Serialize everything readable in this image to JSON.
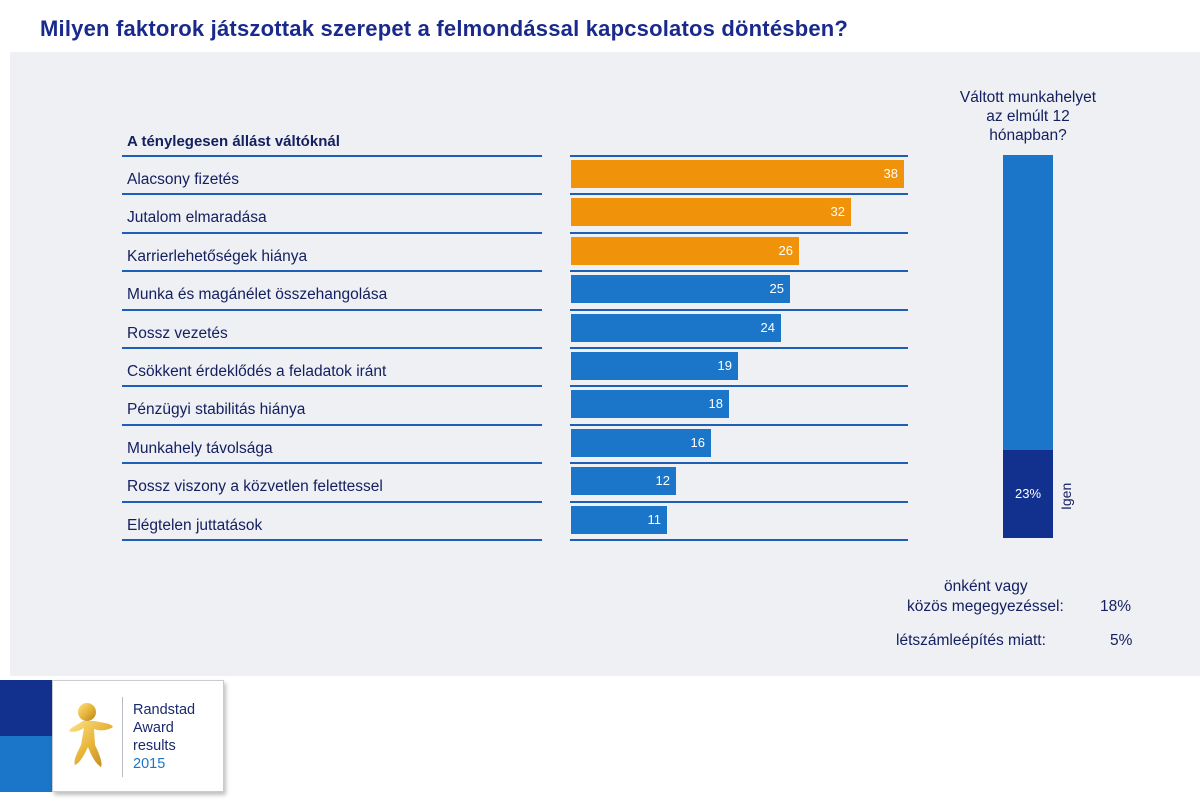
{
  "title": "Milyen faktorok játszottak szerepet a felmondással kapcsolatos döntésben?",
  "section_heading": "A ténylegesen állást váltóknál",
  "colors": {
    "highlight": "#f0920a",
    "primary": "#1b75c9",
    "dark": "#12318f",
    "title": "#1a2a8c"
  },
  "chart_data": [
    {
      "type": "bar",
      "orientation": "horizontal",
      "title": "A ténylegesen állást váltóknál",
      "categories": [
        "Alacsony fizetés",
        "Jutalom elmaradása",
        "Karrierlehetőségek hiánya",
        "Munka és magánélet összehangolása",
        "Rossz vezetés",
        "Csökkent érdeklődés a feladatok iránt",
        "Pénzügyi stabilitás hiánya",
        "Munkahely távolsága",
        "Rossz viszony a közvetlen felettessel",
        "Elégtelen juttatások"
      ],
      "values": [
        38,
        32,
        26,
        25,
        24,
        19,
        18,
        16,
        12,
        11
      ],
      "value_labels": [
        "38",
        "32",
        "26",
        "25",
        "24",
        "19",
        "18",
        "16",
        "12",
        "11"
      ],
      "highlighted_top": 3,
      "xlim": [
        0,
        38
      ],
      "grid": false,
      "legend": "none"
    },
    {
      "type": "bar",
      "orientation": "vertical",
      "title": "Váltott munkahelyet az elmúlt 12 hónapban?",
      "categories": [
        "Igen"
      ],
      "values": [
        23
      ],
      "value_labels": [
        "23%"
      ],
      "ylim": [
        0,
        100
      ],
      "stacked_total": 100
    }
  ],
  "side_question_lines": [
    "Váltott munkahelyet",
    "az elmúlt 12",
    "hónapban?"
  ],
  "footnotes": [
    {
      "label_lines": [
        "önként vagy",
        "közös megegyezéssel:"
      ],
      "value": "18%"
    },
    {
      "label_lines": [
        "létszámleépítés miatt:"
      ],
      "value": "5%"
    }
  ],
  "logo": {
    "lines": [
      "Randstad",
      "Award",
      "results"
    ],
    "year": "2015"
  }
}
